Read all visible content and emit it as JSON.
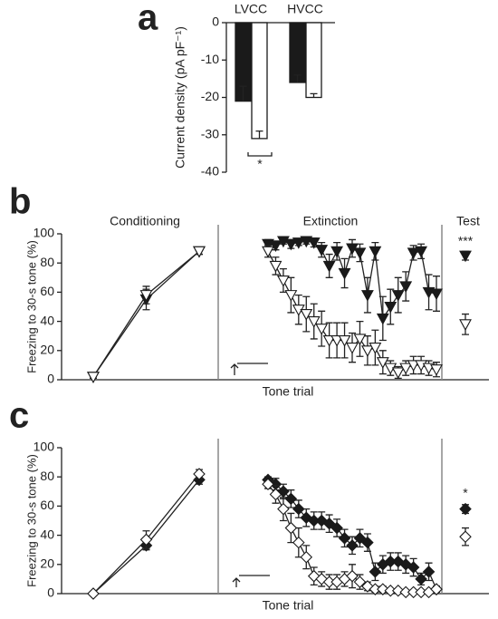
{
  "chart_data": [
    {
      "type": "bar",
      "label": "a",
      "ylabel": "Current density (pA pF⁻¹)",
      "categories": [
        "LVCC",
        "HVCC"
      ],
      "ylim": [
        -40,
        0
      ],
      "yticks": [
        0,
        -10,
        -20,
        -30,
        -40
      ],
      "series": [
        {
          "color": "#1a1a1a",
          "values": [
            -21,
            -16
          ],
          "errors": [
            4,
            2
          ]
        },
        {
          "color": "#ffffff",
          "values": [
            -31,
            -20
          ],
          "errors": [
            2,
            1
          ]
        }
      ],
      "annotations": [
        "*"
      ]
    },
    {
      "type": "line",
      "label": "b",
      "ylabel": "Freezing to 30-s tone (%)",
      "xlabel": "Tone trial",
      "ylim": [
        0,
        100
      ],
      "yticks": [
        0,
        20,
        40,
        60,
        80,
        100
      ],
      "marker": "triangle",
      "sections": [
        {
          "title": "Conditioning",
          "series": [
            {
              "color": "#1a1a1a",
              "values": [
                2,
                55,
                88
              ],
              "errors": [
                1,
                7,
                2
              ]
            },
            {
              "color": "#ffffff",
              "values": [
                2,
                58,
                88
              ],
              "errors": [
                1,
                6,
                2
              ]
            }
          ]
        },
        {
          "title": "Extinction",
          "series": [
            {
              "color": "#1a1a1a",
              "values": [
                93,
                92,
                95,
                93,
                94,
                95,
                94,
                89,
                78,
                88,
                73,
                90,
                87,
                58,
                88,
                42,
                50,
                58,
                64,
                87,
                88,
                60,
                59
              ],
              "errors": [
                3,
                3,
                2,
                3,
                2,
                2,
                3,
                5,
                8,
                6,
                10,
                6,
                6,
                12,
                6,
                15,
                12,
                12,
                10,
                5,
                5,
                12,
                12
              ]
            },
            {
              "color": "#ffffff",
              "values": [
                88,
                78,
                68,
                58,
                48,
                45,
                40,
                35,
                27,
                27,
                27,
                22,
                28,
                20,
                22,
                12,
                8,
                5,
                8,
                10,
                10,
                8,
                7
              ],
              "errors": [
                4,
                6,
                8,
                12,
                10,
                12,
                12,
                12,
                12,
                12,
                12,
                10,
                12,
                10,
                12,
                8,
                5,
                4,
                5,
                6,
                6,
                5,
                5
              ]
            }
          ]
        },
        {
          "title": "Test",
          "series": [
            {
              "color": "#1a1a1a",
              "values": [
                85
              ],
              "errors": [
                3
              ]
            },
            {
              "color": "#ffffff",
              "values": [
                38
              ],
              "errors": [
                7
              ]
            }
          ]
        }
      ],
      "annotations": [
        "***"
      ]
    },
    {
      "type": "line",
      "label": "c",
      "ylabel": "Freezing to 30-s tone (%)",
      "xlabel": "Tone trial",
      "ylim": [
        0,
        100
      ],
      "yticks": [
        0,
        20,
        40,
        60,
        80,
        100
      ],
      "marker": "diamond",
      "sections": [
        {
          "title": null,
          "series": [
            {
              "color": "#1a1a1a",
              "values": [
                0,
                33,
                78
              ],
              "errors": [
                1,
                3,
                3
              ]
            },
            {
              "color": "#ffffff",
              "values": [
                0,
                37,
                82
              ],
              "errors": [
                1,
                6,
                3
              ]
            }
          ]
        },
        {
          "title": null,
          "series": [
            {
              "color": "#1a1a1a",
              "values": [
                78,
                75,
                70,
                65,
                58,
                52,
                50,
                50,
                48,
                45,
                38,
                33,
                38,
                35,
                15,
                20,
                22,
                22,
                20,
                18,
                10,
                15,
                3
              ],
              "errors": [
                2,
                4,
                5,
                6,
                6,
                6,
                6,
                6,
                6,
                6,
                6,
                6,
                6,
                6,
                6,
                6,
                6,
                6,
                6,
                6,
                4,
                6,
                2
              ]
            },
            {
              "color": "#ffffff",
              "values": [
                75,
                68,
                58,
                45,
                35,
                25,
                12,
                10,
                8,
                8,
                10,
                12,
                8,
                5,
                3,
                3,
                2,
                2,
                1,
                1,
                1,
                1,
                3
              ],
              "errors": [
                3,
                6,
                8,
                10,
                10,
                8,
                6,
                5,
                5,
                5,
                5,
                8,
                5,
                3,
                2,
                2,
                1,
                1,
                1,
                1,
                1,
                1,
                2
              ]
            }
          ]
        },
        {
          "title": null,
          "series": [
            {
              "color": "#1a1a1a",
              "values": [
                58
              ],
              "errors": [
                3
              ]
            },
            {
              "color": "#ffffff",
              "values": [
                39
              ],
              "errors": [
                6
              ]
            }
          ]
        }
      ],
      "annotations": [
        "*"
      ]
    }
  ]
}
